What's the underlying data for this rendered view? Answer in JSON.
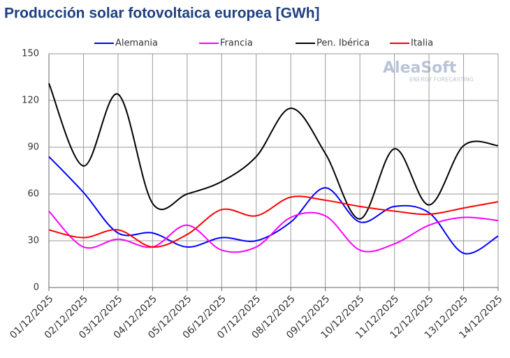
{
  "chart_data": {
    "type": "line",
    "title": "Producción solar fotovoltaica europea [GWh]",
    "categories": [
      "01/12/2025",
      "02/12/2025",
      "03/12/2025",
      "04/12/2025",
      "05/12/2025",
      "06/12/2025",
      "07/12/2025",
      "08/12/2025",
      "09/12/2025",
      "10/12/2025",
      "11/12/2025",
      "12/12/2025",
      "13/12/2025",
      "14/12/2025"
    ],
    "series": [
      {
        "name": "Alemania",
        "color": "#0000ff",
        "values": [
          84,
          61,
          35,
          35,
          26,
          32,
          30,
          42,
          64,
          42,
          52,
          48,
          22,
          33
        ]
      },
      {
        "name": "Francia",
        "color": "#ff00ff",
        "values": [
          49,
          26,
          31,
          26,
          40,
          24,
          26,
          45,
          46,
          24,
          28,
          40,
          45,
          43
        ]
      },
      {
        "name": "Pen. Ibérica",
        "color": "#000000",
        "values": [
          131,
          78,
          124,
          54,
          60,
          68,
          84,
          115,
          86,
          44,
          89,
          53,
          91,
          91
        ]
      },
      {
        "name": "Italia",
        "color": "#ff0000",
        "values": [
          37,
          32,
          37,
          26,
          34,
          50,
          46,
          58,
          56,
          52,
          49,
          47,
          51,
          55
        ]
      }
    ],
    "ylim": [
      0,
      150
    ],
    "yticks": [
      0,
      30,
      60,
      90,
      120,
      150
    ],
    "grid": true,
    "legend": "top",
    "watermark": [
      "AleaSoft",
      "ENERGY FORECASTING"
    ]
  }
}
